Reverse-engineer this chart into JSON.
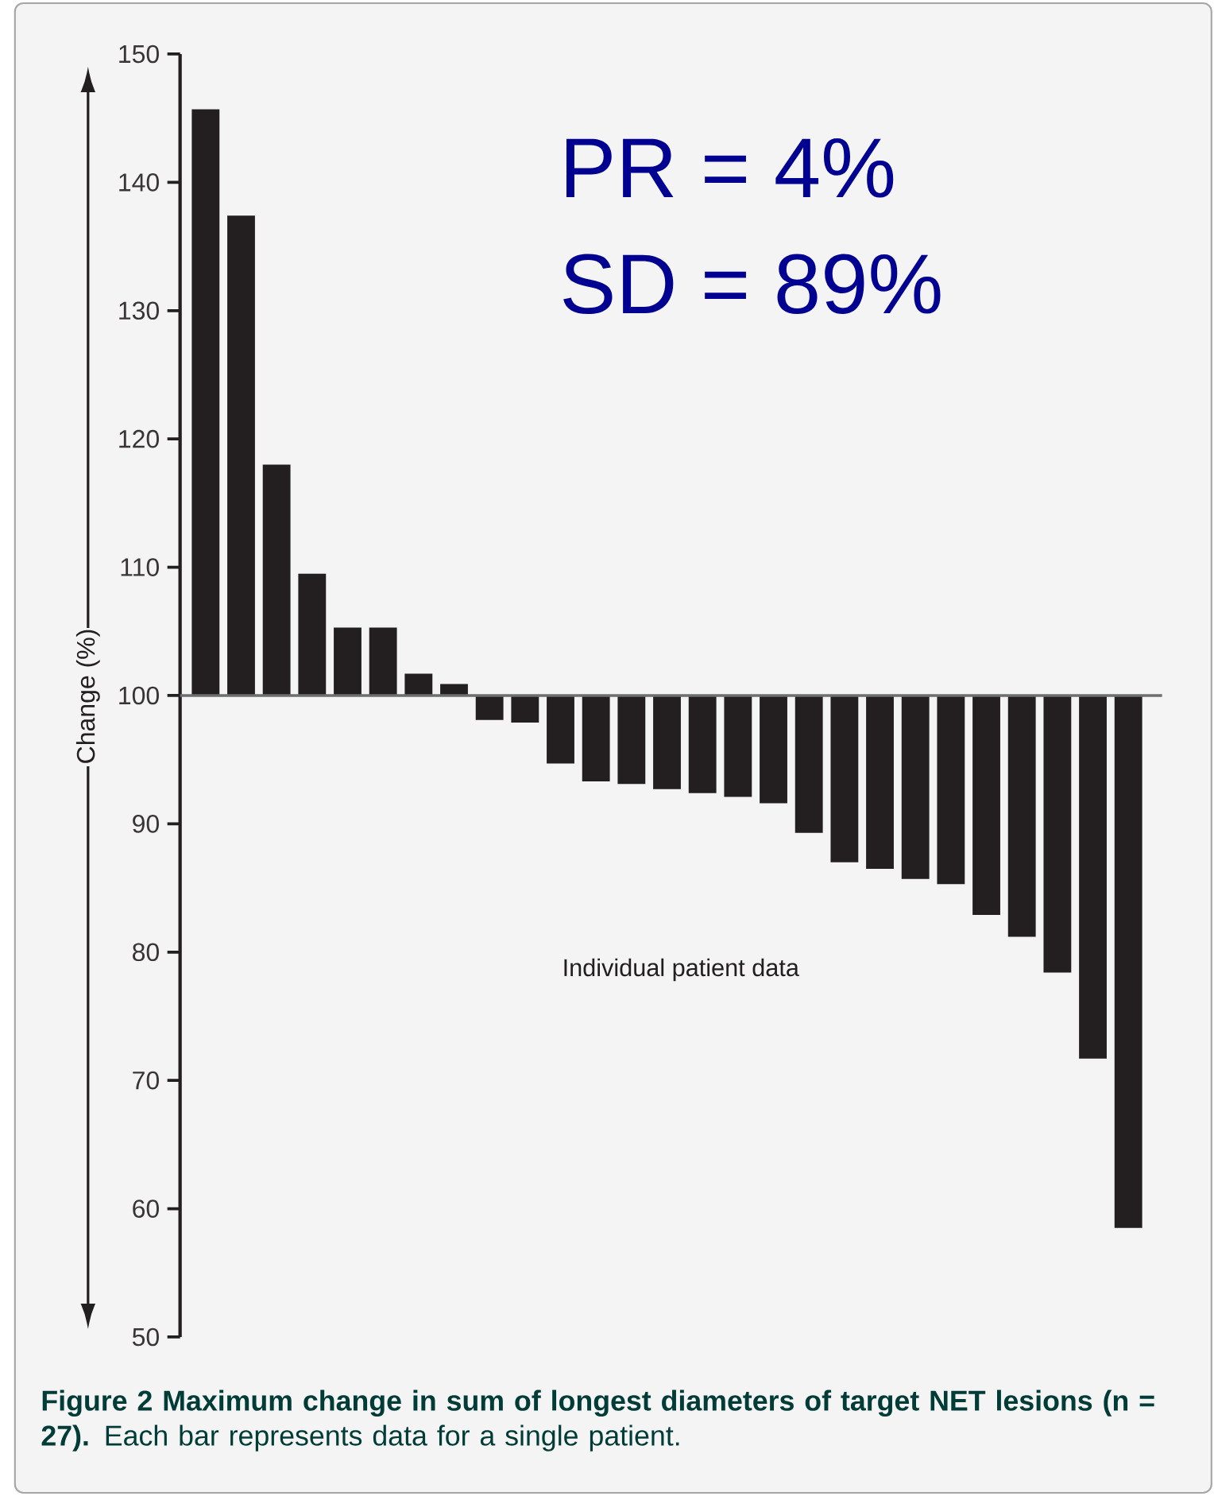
{
  "chart_data": {
    "type": "bar",
    "ylabel": "Change (%)",
    "categories": [
      null,
      null,
      null,
      null,
      null,
      null,
      null,
      null,
      null,
      null,
      null,
      null,
      null,
      null,
      null,
      null,
      null,
      null,
      null,
      null,
      null,
      null,
      null,
      null,
      null,
      null,
      null
    ],
    "base": [
      100,
      100,
      100,
      100,
      100,
      100,
      100,
      100,
      100,
      100,
      100,
      100,
      100,
      100,
      100,
      100,
      100,
      100,
      100,
      100,
      100,
      100,
      100,
      100,
      100,
      100,
      100
    ],
    "values": [
      45.7,
      37.4,
      18.0,
      9.5,
      5.3,
      5.3,
      1.7,
      0.9,
      -1.9,
      -2.1,
      -5.3,
      -6.7,
      -6.9,
      -7.3,
      -7.6,
      -7.9,
      -8.4,
      -10.7,
      -13.0,
      -13.5,
      -14.3,
      -14.7,
      -17.1,
      -18.8,
      -21.6,
      -28.3,
      -41.5
    ],
    "color": "#231f20",
    "ylim": [
      50,
      150
    ],
    "yticks": [
      50,
      60,
      70,
      80,
      90,
      100,
      110,
      120,
      130,
      140,
      150
    ],
    "tick_labels": "y",
    "ref_lines": [
      {
        "axis": "y",
        "value": 100,
        "color": "#6d6e70"
      }
    ],
    "annotations": [
      "PR = 4%",
      "SD = 89%",
      "Individual patient data",
      "**Figure 2 Maximum change in sum of longest diameters of target NET lesions (n = 27).** Each bar represents data for a single patient."
    ]
  }
}
